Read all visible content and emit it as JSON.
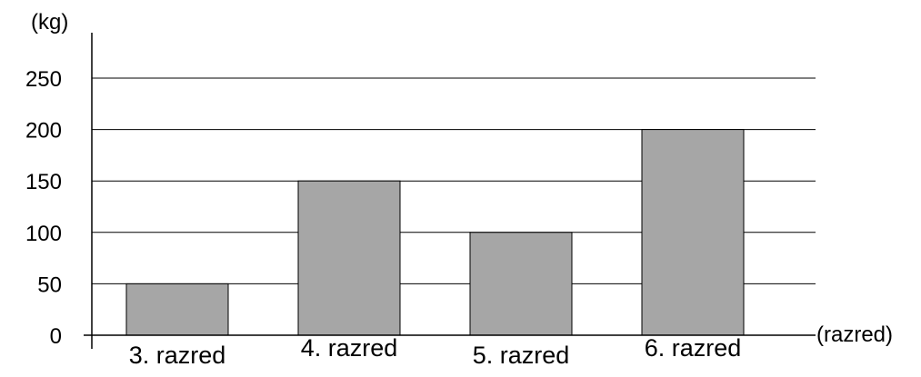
{
  "chart_data": {
    "type": "bar",
    "categories": [
      "3. razred",
      "4. razred",
      "5. razred",
      "6. razred"
    ],
    "values": [
      50,
      150,
      100,
      200
    ],
    "title": "",
    "xlabel": "(razred)",
    "ylabel": "(kg)",
    "ylim": [
      0,
      250
    ],
    "yticks": [
      0,
      50,
      100,
      150,
      200,
      250
    ],
    "grid": true,
    "bar_color": "#a6a6a6"
  }
}
